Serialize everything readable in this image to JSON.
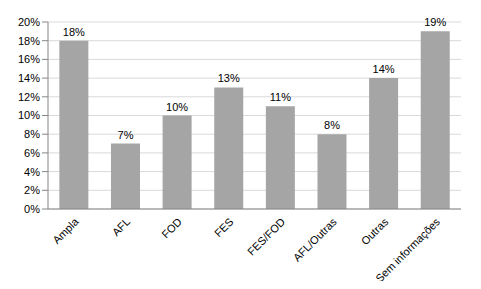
{
  "chart_data": {
    "type": "bar",
    "categories": [
      "Ampla",
      "AFL",
      "FOD",
      "FES",
      "FES/FOD",
      "AFL/Outras",
      "Outras",
      "Sem informações"
    ],
    "values": [
      18,
      7,
      10,
      13,
      11,
      8,
      14,
      19
    ],
    "value_labels": [
      "18%",
      "7%",
      "10%",
      "13%",
      "11%",
      "8%",
      "14%",
      "19%"
    ],
    "color": "#a5a5a5",
    "ylim": [
      0,
      20
    ],
    "yticks": [
      {
        "value": 0,
        "label": "0%"
      },
      {
        "value": 2,
        "label": "2%"
      },
      {
        "value": 4,
        "label": "4%"
      },
      {
        "value": 6,
        "label": "6%"
      },
      {
        "value": 8,
        "label": "8%"
      },
      {
        "value": 10,
        "label": "10%"
      },
      {
        "value": 12,
        "label": "12%"
      },
      {
        "value": 14,
        "label": "14%"
      },
      {
        "value": 16,
        "label": "16%"
      },
      {
        "value": 18,
        "label": "18%"
      },
      {
        "value": 20,
        "label": "20%"
      }
    ],
    "grid": true,
    "data_labels": true
  }
}
